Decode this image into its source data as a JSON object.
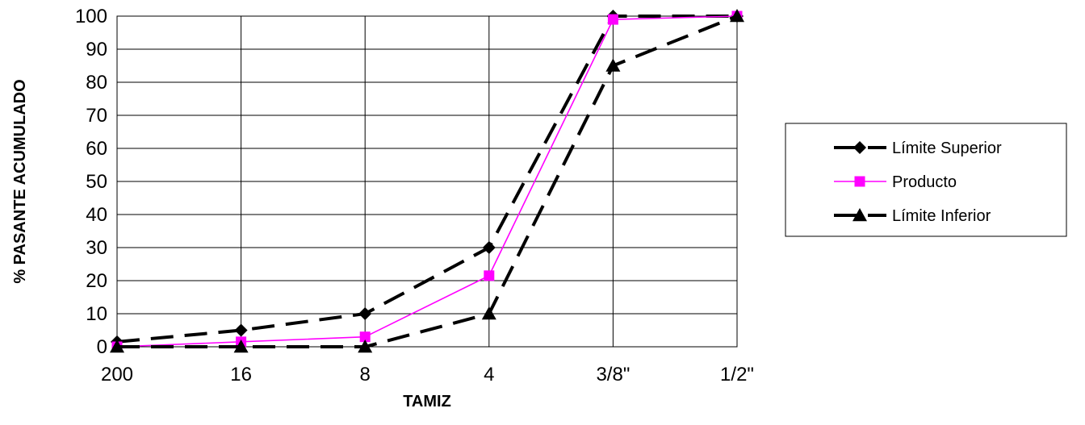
{
  "chart_data": {
    "type": "line",
    "title": "",
    "xlabel": "TAMIZ",
    "ylabel": "% PASANTE ACUMULADO",
    "categories": [
      "200",
      "16",
      "8",
      "4",
      "3/8\"",
      "1/2\""
    ],
    "ylim": [
      0,
      100
    ],
    "yticks": [
      0,
      10,
      20,
      30,
      40,
      50,
      60,
      70,
      80,
      90,
      100
    ],
    "grid": true,
    "legend_position": "right",
    "series": [
      {
        "name": "Límite Superior",
        "values": [
          1.5,
          5,
          10,
          30,
          100,
          100
        ],
        "color": "#000000",
        "marker": "diamond",
        "line_style": "dashed"
      },
      {
        "name": "Producto",
        "values": [
          0,
          1.5,
          3,
          21.5,
          99,
          100
        ],
        "color": "#ff00ff",
        "marker": "square",
        "line_style": "solid"
      },
      {
        "name": "Límite Inferior",
        "values": [
          0,
          0,
          0,
          10,
          85,
          100
        ],
        "color": "#000000",
        "marker": "triangle",
        "line_style": "dashed"
      }
    ]
  }
}
